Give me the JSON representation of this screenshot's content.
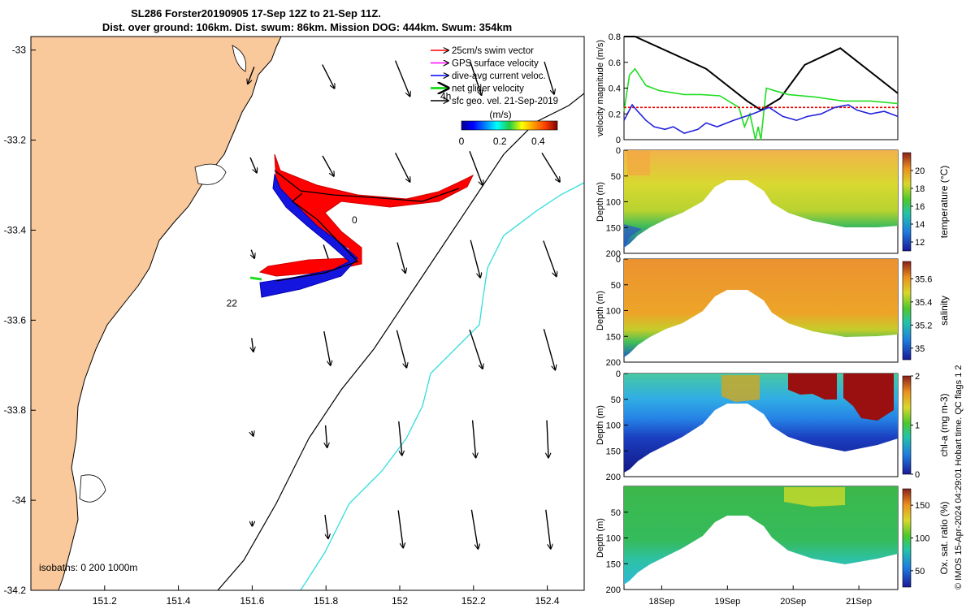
{
  "title_line1": "SL286 Forster20190905 17-Sep 12Z to 21-Sep 11Z.",
  "title_line2": "Dist. over ground: 106km. Dist. swum: 86km. Mission DOG: 444km. Swum: 354km",
  "footer_text": "© IMOS 15-Apr-2024 04:29:01 Hobart time. QC flags 1  2",
  "map": {
    "lon_ticks": [
      "151.2",
      "151.4",
      "151.6",
      "151.8",
      "152",
      "152.2",
      "152.4"
    ],
    "lat_ticks": [
      "-33",
      "-33.2",
      "-33.4",
      "-33.6",
      "-33.8",
      "-34",
      "-34.2"
    ],
    "lon_range": [
      151.0,
      152.5
    ],
    "lat_range": [
      -34.2,
      -32.97
    ],
    "land_color": "#f9c89b",
    "isobath_colors": {
      "200": "#000000",
      "1000": "#33dddd"
    },
    "isobath_label": "isobaths: 0   200  1000m",
    "time_labels": [
      {
        "text": "4h",
        "lon": 152.11,
        "lat": -33.11
      },
      {
        "text": "0",
        "lon": 151.87,
        "lat": -33.385
      },
      {
        "text": "22",
        "lon": 151.53,
        "lat": -33.57
      }
    ],
    "legend": [
      {
        "label": "25cm/s swim vector",
        "color": "#ff0000"
      },
      {
        "label": "GPS surface velocity",
        "color": "#ff00ff"
      },
      {
        "label": "dive-avg current veloc.",
        "color": "#0000ff"
      },
      {
        "label": "net glider velocity",
        "color": "#22dd22"
      },
      {
        "label": "sfc geo. vel. 21-Sep-2019",
        "color": "#000000"
      }
    ],
    "colorbar": {
      "label": "(m/s)",
      "ticks": [
        "0",
        "0.2",
        "0.4"
      ],
      "range": [
        0,
        0.5
      ]
    }
  },
  "chart_data": [
    {
      "type": "line",
      "ylabel": "velocity magnitude (m/s)",
      "x_range": [
        "17-Sep 12Z",
        "21-Sep 11Z"
      ],
      "ylim": [
        0,
        0.8
      ],
      "yticks": [
        "0",
        "0.2",
        "0.4",
        "0.6",
        "0.8"
      ],
      "series": [
        {
          "color": "#000000",
          "x": [
            0,
            0.04,
            0.3,
            0.45,
            0.5,
            0.57,
            0.66,
            0.79,
            1.0
          ],
          "values": [
            0.8,
            0.8,
            0.55,
            0.3,
            0.23,
            0.32,
            0.58,
            0.71,
            0.36
          ]
        },
        {
          "color": "#22dd22",
          "x": [
            0,
            0.02,
            0.04,
            0.08,
            0.13,
            0.22,
            0.28,
            0.35,
            0.42,
            0.44,
            0.46,
            0.48,
            0.49,
            0.5,
            0.52,
            0.55,
            0.6,
            0.7,
            0.8,
            0.9,
            1.0
          ],
          "values": [
            0.22,
            0.5,
            0.55,
            0.42,
            0.38,
            0.35,
            0.35,
            0.34,
            0.25,
            0.1,
            0.2,
            0.0,
            0.1,
            0.0,
            0.4,
            0.38,
            0.35,
            0.33,
            0.3,
            0.3,
            0.28
          ]
        },
        {
          "color": "#ee0000",
          "x": [
            0,
            1.0
          ],
          "values": [
            0.25,
            0.25
          ]
        },
        {
          "color": "#2222dd",
          "x": [
            0,
            0.03,
            0.05,
            0.08,
            0.11,
            0.15,
            0.18,
            0.22,
            0.27,
            0.3,
            0.34,
            0.4,
            0.47,
            0.53,
            0.58,
            0.63,
            0.67,
            0.72,
            0.77,
            0.82,
            0.85,
            0.9,
            0.95,
            1.0
          ],
          "values": [
            0.15,
            0.27,
            0.22,
            0.15,
            0.1,
            0.08,
            0.1,
            0.05,
            0.08,
            0.13,
            0.1,
            0.15,
            0.2,
            0.25,
            0.18,
            0.15,
            0.18,
            0.2,
            0.25,
            0.27,
            0.23,
            0.2,
            0.22,
            0.18
          ]
        }
      ]
    },
    {
      "type": "heatmap",
      "ylabel": "Depth (m)",
      "colorbar_label": "temperature (°C)",
      "ylim": [
        0,
        200
      ],
      "yticks": [
        "0",
        "50",
        "100",
        "150",
        "200"
      ],
      "cticks": [
        "12",
        "14",
        "16",
        "18",
        "20"
      ],
      "crange": [
        11,
        22
      ]
    },
    {
      "type": "heatmap",
      "ylabel": "Depth (m)",
      "colorbar_label": "salinity",
      "ylim": [
        0,
        200
      ],
      "yticks": [
        "0",
        "50",
        "100",
        "150",
        "200"
      ],
      "cticks": [
        "35",
        "35.2",
        "35.4",
        "35.6"
      ],
      "crange": [
        34.9,
        35.75
      ]
    },
    {
      "type": "heatmap",
      "ylabel": "Depth (m)",
      "colorbar_label": "chl-a (mg m-3)",
      "ylim": [
        0,
        200
      ],
      "yticks": [
        "0",
        "50",
        "100",
        "150",
        "200"
      ],
      "cticks": [
        "0",
        "1",
        "2"
      ],
      "crange": [
        0,
        2
      ]
    },
    {
      "type": "heatmap",
      "ylabel": "Depth (m)",
      "colorbar_label": "Ox. sat. ratio (%)",
      "ylim": [
        0,
        200
      ],
      "yticks": [
        "50",
        "100",
        "150",
        "200"
      ],
      "cticks": [
        "50",
        "100",
        "150"
      ],
      "crange": [
        25,
        175
      ],
      "xticks": [
        "18Sep",
        "19Sep",
        "20Sep",
        "21Sep"
      ]
    }
  ]
}
